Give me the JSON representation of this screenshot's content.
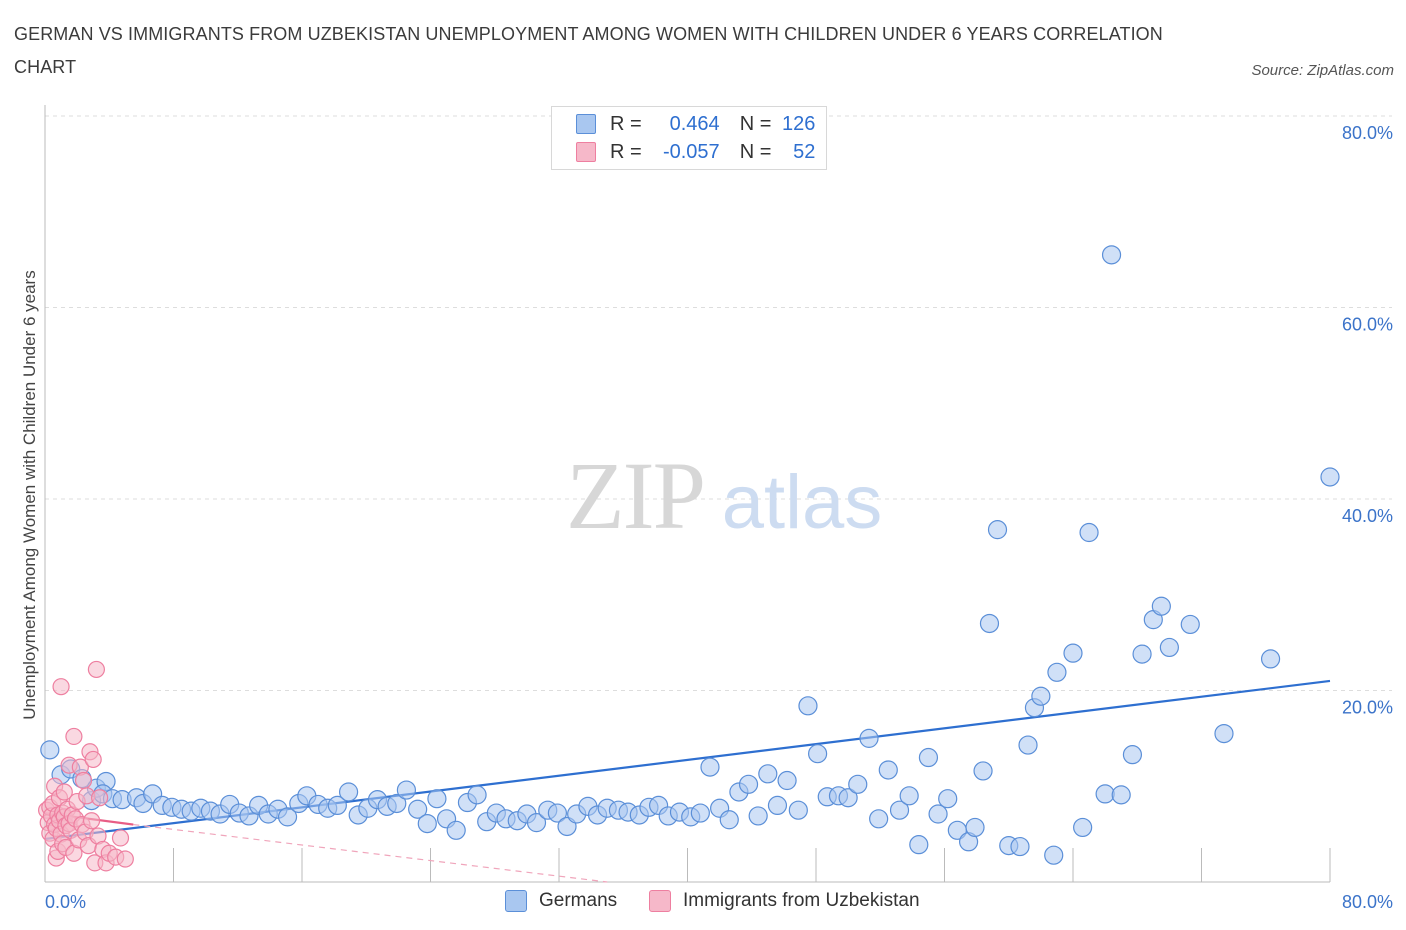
{
  "title": "GERMAN VS IMMIGRANTS FROM UZBEKISTAN UNEMPLOYMENT AMONG WOMEN WITH CHILDREN UNDER 6 YEARS CORRELATION CHART",
  "source": "Source: ZipAtlas.com",
  "watermark": {
    "zip": "ZIP",
    "atlas": "atlas"
  },
  "legend": {
    "r_label": "R =",
    "n_label": "N =",
    "rows": [
      {
        "r": "0.464",
        "n": "126"
      },
      {
        "r": "-0.057",
        "n": "52"
      }
    ]
  },
  "colors": {
    "blue_fill": "#a9c7f0",
    "blue_stroke": "#5b8fd8",
    "blue_line": "#2e6fd0",
    "pink_fill": "#f6b8c9",
    "pink_stroke": "#ee7fa0",
    "pink_line": "#e85d85",
    "axis_text": "#3b73c9",
    "grid": "#dddddd"
  },
  "chart_data": {
    "type": "scatter",
    "title": "GERMAN VS IMMIGRANTS FROM UZBEKISTAN UNEMPLOYMENT AMONG WOMEN WITH CHILDREN UNDER 6 YEARS CORRELATION CHART",
    "xlabel": "",
    "ylabel": "Unemployment Among Women with Children Under 6 years",
    "xlim": [
      0,
      80
    ],
    "ylim": [
      0,
      80
    ],
    "x_tick_labels": [
      "0.0%",
      "80.0%"
    ],
    "y_tick_labels": [
      "20.0%",
      "40.0%",
      "60.0%",
      "80.0%"
    ],
    "y_ticks": [
      20,
      40,
      60,
      80
    ],
    "grid": true,
    "legend_position": "bottom-center",
    "series": [
      {
        "name": "Germans",
        "color": "#5b8fd8",
        "trend": {
          "x": [
            0,
            80
          ],
          "y": [
            4.5,
            21.0
          ],
          "style": "solid"
        },
        "points": [
          [
            0.3,
            13.8
          ],
          [
            1.0,
            11.2
          ],
          [
            1.6,
            11.8
          ],
          [
            2.3,
            10.8
          ],
          [
            2.9,
            8.5
          ],
          [
            3.2,
            9.8
          ],
          [
            3.8,
            10.5
          ],
          [
            3.6,
            9.2
          ],
          [
            4.2,
            8.7
          ],
          [
            4.8,
            8.6
          ],
          [
            5.7,
            8.8
          ],
          [
            6.1,
            8.2
          ],
          [
            6.7,
            9.2
          ],
          [
            7.3,
            8.0
          ],
          [
            7.9,
            7.8
          ],
          [
            8.5,
            7.6
          ],
          [
            9.1,
            7.4
          ],
          [
            9.7,
            7.7
          ],
          [
            10.3,
            7.4
          ],
          [
            10.9,
            7.1
          ],
          [
            11.5,
            8.1
          ],
          [
            12.1,
            7.2
          ],
          [
            12.7,
            6.9
          ],
          [
            13.3,
            8.0
          ],
          [
            13.9,
            7.1
          ],
          [
            14.5,
            7.6
          ],
          [
            15.1,
            6.8
          ],
          [
            15.8,
            8.2
          ],
          [
            16.3,
            9.0
          ],
          [
            17.0,
            8.1
          ],
          [
            17.6,
            7.7
          ],
          [
            18.2,
            8.0
          ],
          [
            18.9,
            9.4
          ],
          [
            19.5,
            7.0
          ],
          [
            20.1,
            7.7
          ],
          [
            20.7,
            8.6
          ],
          [
            21.3,
            7.9
          ],
          [
            21.9,
            8.2
          ],
          [
            22.5,
            9.6
          ],
          [
            23.2,
            7.6
          ],
          [
            23.8,
            6.1
          ],
          [
            24.4,
            8.7
          ],
          [
            25.0,
            6.6
          ],
          [
            25.6,
            5.4
          ],
          [
            26.3,
            8.3
          ],
          [
            26.9,
            9.1
          ],
          [
            27.5,
            6.3
          ],
          [
            28.1,
            7.2
          ],
          [
            28.7,
            6.6
          ],
          [
            29.4,
            6.4
          ],
          [
            30.0,
            7.1
          ],
          [
            30.6,
            6.2
          ],
          [
            31.3,
            7.5
          ],
          [
            31.9,
            7.2
          ],
          [
            32.5,
            5.8
          ],
          [
            33.1,
            7.1
          ],
          [
            33.8,
            7.9
          ],
          [
            34.4,
            7.0
          ],
          [
            35.0,
            7.7
          ],
          [
            35.7,
            7.5
          ],
          [
            36.3,
            7.3
          ],
          [
            37.0,
            7.0
          ],
          [
            37.6,
            7.8
          ],
          [
            38.2,
            8.0
          ],
          [
            38.8,
            6.9
          ],
          [
            39.5,
            7.3
          ],
          [
            40.2,
            6.8
          ],
          [
            40.8,
            7.2
          ],
          [
            41.4,
            12.0
          ],
          [
            42.0,
            7.7
          ],
          [
            42.6,
            6.5
          ],
          [
            43.2,
            9.4
          ],
          [
            43.8,
            10.2
          ],
          [
            44.4,
            6.9
          ],
          [
            45.0,
            11.3
          ],
          [
            45.6,
            8.0
          ],
          [
            46.2,
            10.6
          ],
          [
            46.9,
            7.5
          ],
          [
            47.5,
            18.4
          ],
          [
            48.1,
            13.4
          ],
          [
            48.7,
            8.9
          ],
          [
            49.4,
            9.0
          ],
          [
            50.0,
            8.8
          ],
          [
            50.6,
            10.2
          ],
          [
            51.3,
            15.0
          ],
          [
            51.9,
            6.6
          ],
          [
            52.5,
            11.7
          ],
          [
            53.2,
            7.5
          ],
          [
            53.8,
            9.0
          ],
          [
            54.4,
            3.9
          ],
          [
            55.0,
            13.0
          ],
          [
            55.6,
            7.1
          ],
          [
            56.2,
            8.7
          ],
          [
            56.8,
            5.4
          ],
          [
            57.5,
            4.2
          ],
          [
            57.9,
            5.7
          ],
          [
            58.4,
            11.6
          ],
          [
            58.8,
            27.0
          ],
          [
            59.3,
            36.8
          ],
          [
            60.0,
            3.8
          ],
          [
            60.7,
            3.7
          ],
          [
            61.2,
            14.3
          ],
          [
            61.6,
            18.2
          ],
          [
            62.0,
            19.4
          ],
          [
            63.0,
            21.9
          ],
          [
            64.0,
            23.9
          ],
          [
            64.6,
            5.7
          ],
          [
            65.0,
            36.5
          ],
          [
            66.0,
            9.2
          ],
          [
            66.4,
            65.5
          ],
          [
            67.0,
            9.1
          ],
          [
            67.7,
            13.3
          ],
          [
            68.3,
            23.8
          ],
          [
            69.0,
            27.4
          ],
          [
            69.5,
            28.8
          ],
          [
            70.0,
            24.5
          ],
          [
            71.3,
            26.9
          ],
          [
            73.4,
            15.5
          ],
          [
            76.3,
            23.3
          ],
          [
            80.0,
            42.3
          ],
          [
            62.8,
            2.8
          ]
        ]
      },
      {
        "name": "Immigrants from Uzbekistan",
        "color": "#ee7fa0",
        "trend": {
          "x": [
            0,
            5.5
          ],
          "y": [
            7.2,
            6.0
          ],
          "style": "solid",
          "extended": {
            "x": [
              5.5,
              35.0
            ],
            "y": [
              6.0,
              0.0
            ],
            "style": "dashed"
          }
        },
        "points": [
          [
            0.1,
            7.5
          ],
          [
            0.2,
            6.2
          ],
          [
            0.3,
            5.1
          ],
          [
            0.3,
            7.8
          ],
          [
            0.4,
            6.9
          ],
          [
            0.5,
            4.5
          ],
          [
            0.5,
            8.2
          ],
          [
            0.6,
            6.0
          ],
          [
            0.6,
            10.0
          ],
          [
            0.7,
            2.5
          ],
          [
            0.7,
            5.6
          ],
          [
            0.8,
            7.0
          ],
          [
            0.8,
            3.2
          ],
          [
            0.9,
            6.4
          ],
          [
            0.9,
            8.8
          ],
          [
            1.0,
            5.0
          ],
          [
            1.0,
            20.4
          ],
          [
            1.1,
            7.2
          ],
          [
            1.1,
            4.0
          ],
          [
            1.2,
            6.8
          ],
          [
            1.2,
            9.4
          ],
          [
            1.3,
            5.9
          ],
          [
            1.3,
            3.6
          ],
          [
            1.4,
            7.6
          ],
          [
            1.5,
            6.1
          ],
          [
            1.5,
            12.2
          ],
          [
            1.6,
            5.4
          ],
          [
            1.7,
            7.0
          ],
          [
            1.8,
            15.2
          ],
          [
            1.8,
            3.0
          ],
          [
            1.9,
            6.6
          ],
          [
            2.0,
            8.4
          ],
          [
            2.1,
            4.4
          ],
          [
            2.2,
            12.0
          ],
          [
            2.3,
            6.0
          ],
          [
            2.4,
            10.6
          ],
          [
            2.5,
            5.2
          ],
          [
            2.6,
            9.0
          ],
          [
            2.7,
            3.8
          ],
          [
            2.8,
            13.6
          ],
          [
            2.9,
            6.4
          ],
          [
            3.0,
            12.8
          ],
          [
            3.1,
            2.0
          ],
          [
            3.2,
            22.2
          ],
          [
            3.3,
            4.8
          ],
          [
            3.4,
            8.8
          ],
          [
            3.6,
            3.4
          ],
          [
            3.8,
            2.0
          ],
          [
            4.0,
            3.0
          ],
          [
            4.4,
            2.6
          ],
          [
            4.7,
            4.6
          ],
          [
            5.0,
            2.4
          ]
        ]
      }
    ]
  }
}
